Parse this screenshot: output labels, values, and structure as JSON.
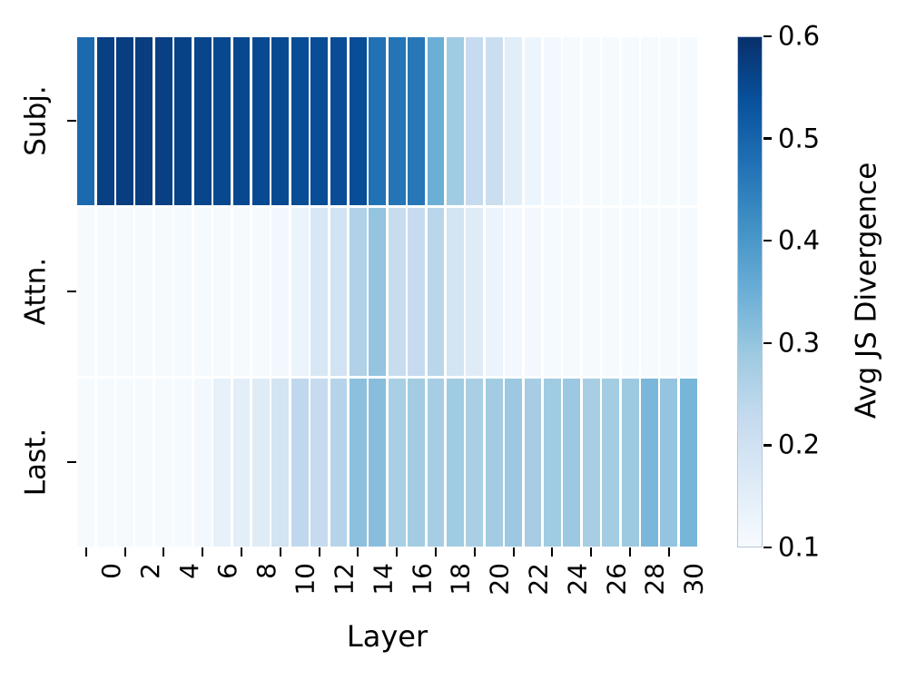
{
  "figure": {
    "background": "#ffffff",
    "text_color": "#000000"
  },
  "chart_data": {
    "type": "heatmap",
    "title": "",
    "xlabel": "Layer",
    "ylabel": "",
    "rows": [
      "Subj.",
      "Attn.",
      "Last."
    ],
    "n_cols": 32,
    "x_tick_labels": [
      "0",
      "2",
      "4",
      "6",
      "8",
      "10",
      "12",
      "14",
      "16",
      "18",
      "20",
      "22",
      "24",
      "26",
      "28",
      "30"
    ],
    "x_tick_step": 2,
    "series": [
      {
        "name": "Subj.",
        "values": [
          0.49,
          0.57,
          0.575,
          0.575,
          0.57,
          0.565,
          0.56,
          0.555,
          0.555,
          0.55,
          0.55,
          0.545,
          0.545,
          0.545,
          0.545,
          0.475,
          0.47,
          0.465,
          0.35,
          0.285,
          0.225,
          0.215,
          0.155,
          0.125,
          0.11,
          0.105,
          0.105,
          0.105,
          0.105,
          0.105,
          0.105,
          0.105
        ]
      },
      {
        "name": "Attn.",
        "values": [
          0.105,
          0.105,
          0.105,
          0.105,
          0.105,
          0.105,
          0.105,
          0.105,
          0.105,
          0.105,
          0.11,
          0.13,
          0.18,
          0.195,
          0.26,
          0.3,
          0.22,
          0.225,
          0.245,
          0.19,
          0.16,
          0.13,
          0.11,
          0.11,
          0.105,
          0.105,
          0.105,
          0.105,
          0.105,
          0.105,
          0.105,
          0.105
        ]
      },
      {
        "name": "Last.",
        "values": [
          0.105,
          0.105,
          0.105,
          0.105,
          0.105,
          0.105,
          0.11,
          0.14,
          0.15,
          0.16,
          0.19,
          0.235,
          0.225,
          0.25,
          0.31,
          0.315,
          0.27,
          0.28,
          0.275,
          0.285,
          0.27,
          0.28,
          0.29,
          0.275,
          0.283,
          0.29,
          0.272,
          0.278,
          0.288,
          0.33,
          0.3,
          0.335
        ]
      }
    ],
    "vmin": 0.1,
    "vmax": 0.6,
    "colormap": "Blues",
    "colormap_anchors": [
      [
        0.0,
        "#f7fbff"
      ],
      [
        0.125,
        "#deebf7"
      ],
      [
        0.25,
        "#c6dbef"
      ],
      [
        0.375,
        "#9ecae1"
      ],
      [
        0.5,
        "#6baed6"
      ],
      [
        0.625,
        "#4292c6"
      ],
      [
        0.75,
        "#2171b5"
      ],
      [
        0.875,
        "#08519c"
      ],
      [
        1.0,
        "#08306b"
      ]
    ],
    "grid": false,
    "cell_gap_color": "#ffffff",
    "colorbar": {
      "label": "Avg JS Divergence",
      "tick_labels": [
        "0.6",
        "0.5",
        "0.4",
        "0.3",
        "0.2",
        "0.1"
      ],
      "position": "right"
    }
  }
}
